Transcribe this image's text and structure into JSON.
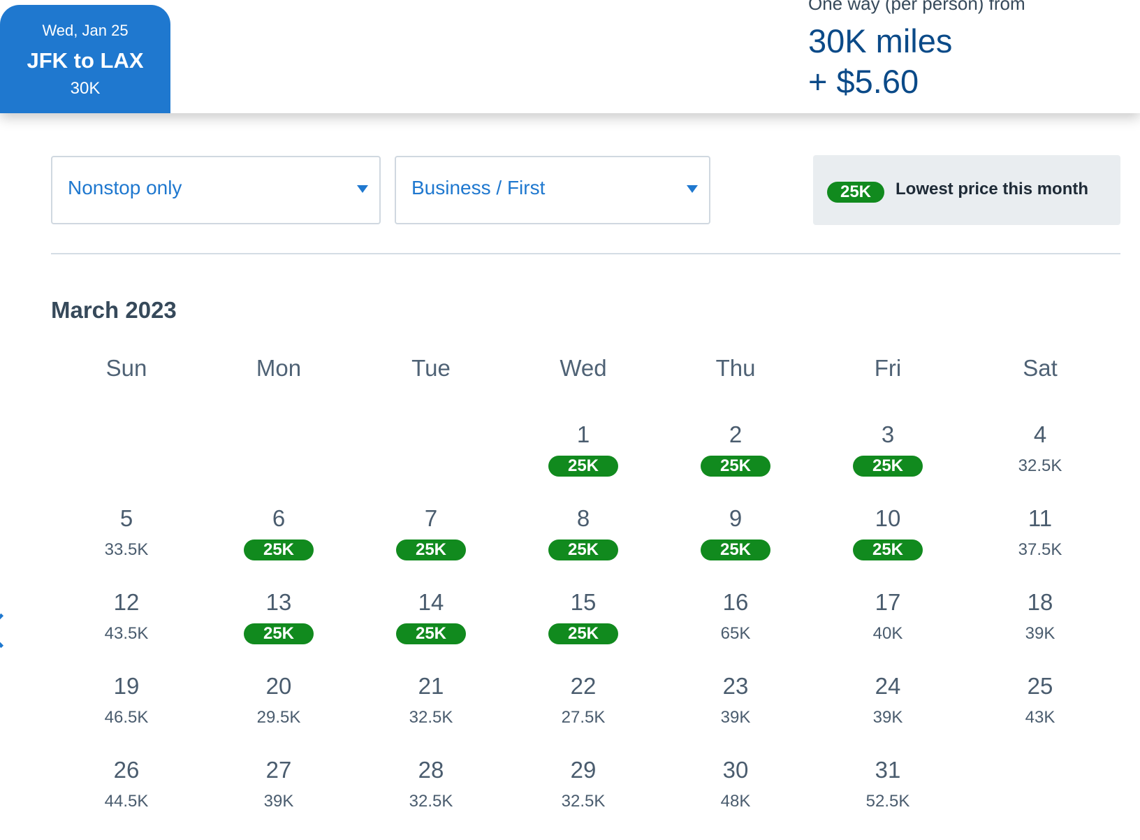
{
  "header": {
    "tab": {
      "date": "Wed, Jan 25",
      "route": "JFK to LAX",
      "price": "30K"
    },
    "fare": {
      "label": "One way (per person) from",
      "miles": "30K miles",
      "fee": "+ $5.60"
    }
  },
  "filters": {
    "stops": "Nonstop only",
    "cabin": "Business / First"
  },
  "legend": {
    "badge": "25K",
    "text": "Lowest price this month"
  },
  "calendar": {
    "month": "March 2023",
    "weekdays": [
      "Sun",
      "Mon",
      "Tue",
      "Wed",
      "Thu",
      "Fri",
      "Sat"
    ],
    "days": [
      {
        "day": "1",
        "price": "25K",
        "lowest": true
      },
      {
        "day": "2",
        "price": "25K",
        "lowest": true
      },
      {
        "day": "3",
        "price": "25K",
        "lowest": true
      },
      {
        "day": "4",
        "price": "32.5K",
        "lowest": false
      },
      {
        "day": "5",
        "price": "33.5K",
        "lowest": false
      },
      {
        "day": "6",
        "price": "25K",
        "lowest": true
      },
      {
        "day": "7",
        "price": "25K",
        "lowest": true
      },
      {
        "day": "8",
        "price": "25K",
        "lowest": true
      },
      {
        "day": "9",
        "price": "25K",
        "lowest": true
      },
      {
        "day": "10",
        "price": "25K",
        "lowest": true
      },
      {
        "day": "11",
        "price": "37.5K",
        "lowest": false
      },
      {
        "day": "12",
        "price": "43.5K",
        "lowest": false
      },
      {
        "day": "13",
        "price": "25K",
        "lowest": true
      },
      {
        "day": "14",
        "price": "25K",
        "lowest": true
      },
      {
        "day": "15",
        "price": "25K",
        "lowest": true
      },
      {
        "day": "16",
        "price": "65K",
        "lowest": false
      },
      {
        "day": "17",
        "price": "40K",
        "lowest": false
      },
      {
        "day": "18",
        "price": "39K",
        "lowest": false
      },
      {
        "day": "19",
        "price": "46.5K",
        "lowest": false
      },
      {
        "day": "20",
        "price": "29.5K",
        "lowest": false
      },
      {
        "day": "21",
        "price": "32.5K",
        "lowest": false
      },
      {
        "day": "22",
        "price": "27.5K",
        "lowest": false
      },
      {
        "day": "23",
        "price": "39K",
        "lowest": false
      },
      {
        "day": "24",
        "price": "39K",
        "lowest": false
      },
      {
        "day": "25",
        "price": "43K",
        "lowest": false
      },
      {
        "day": "26",
        "price": "44.5K",
        "lowest": false
      },
      {
        "day": "27",
        "price": "39K",
        "lowest": false
      },
      {
        "day": "28",
        "price": "32.5K",
        "lowest": false
      },
      {
        "day": "29",
        "price": "32.5K",
        "lowest": false
      },
      {
        "day": "30",
        "price": "48K",
        "lowest": false
      },
      {
        "day": "31",
        "price": "52.5K",
        "lowest": false
      }
    ]
  },
  "colors": {
    "primary": "#1f78cf",
    "lowest_badge": "#118a1e",
    "fare_text": "#0b4a88"
  },
  "icons": {
    "prev_month": "chevron-left-icon",
    "dropdown": "caret-down-icon"
  }
}
